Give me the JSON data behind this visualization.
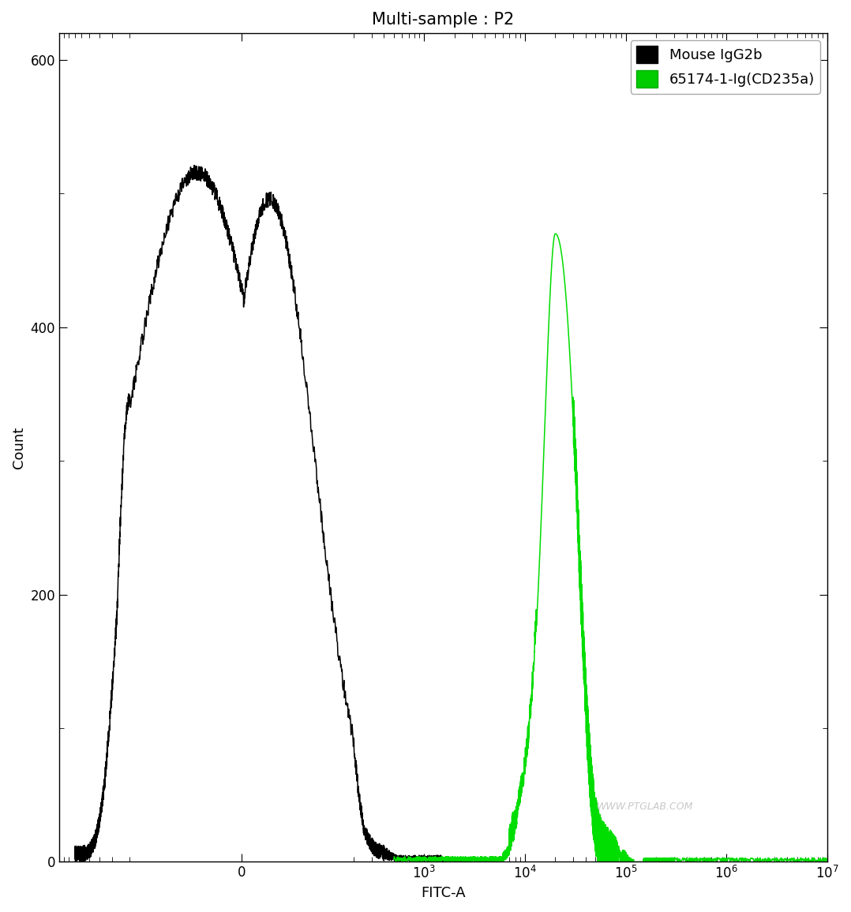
{
  "title": "Multi-sample : P2",
  "xlabel": "FITC-A",
  "ylabel": "Count",
  "ylim": [
    0,
    620
  ],
  "yticks": [
    0,
    200,
    400,
    600
  ],
  "xscale_linthresh": 200,
  "xlim_left": -700,
  "xlim_right": 10000000.0,
  "background_color": "#ffffff",
  "watermark": "WWW.PTGLAB.COM",
  "legend_entries": [
    "Mouse IgG2b",
    "65174-1-Ig(CD235a)"
  ],
  "legend_colors": [
    "#000000",
    "#00cc00"
  ],
  "title_fontsize": 15,
  "label_fontsize": 13,
  "tick_fontsize": 12,
  "line_width": 1.1
}
